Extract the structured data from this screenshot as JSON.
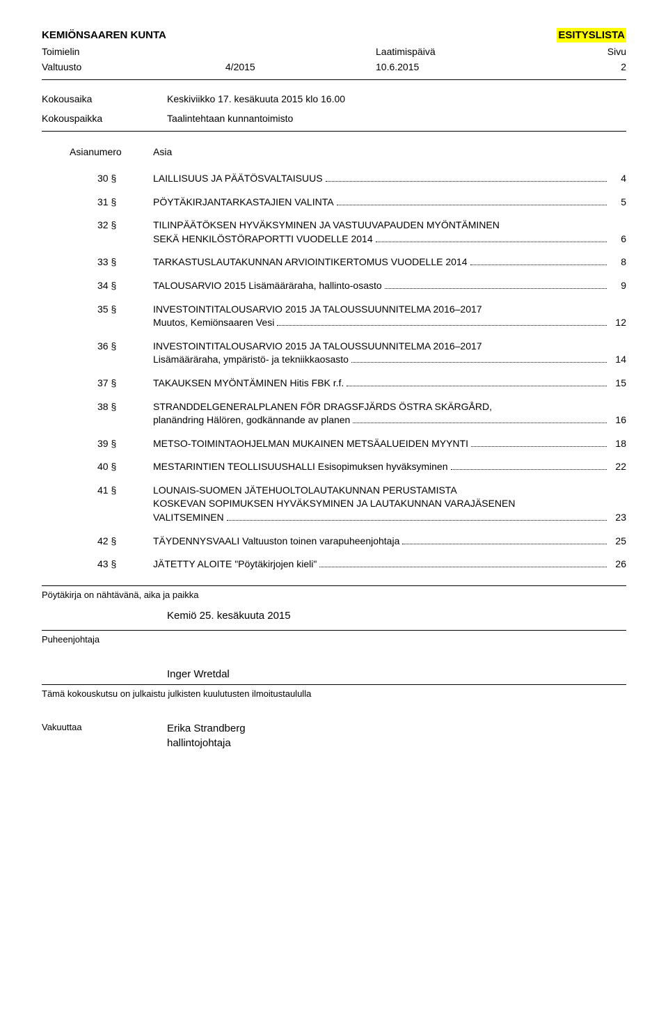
{
  "header": {
    "org": "KEMIÖNSAAREN KUNTA",
    "doc_type": "ESITYSLISTA",
    "body_label": "Toimielin",
    "date_label": "Laatimispäivä",
    "page_label": "Sivu",
    "body_name": "Valtuusto",
    "meeting_no": "4/2015",
    "date": "10.6.2015",
    "page_no": "2"
  },
  "meeting": {
    "time_label": "Kokousaika",
    "time_value": "Keskiviikko 17. kesäkuuta 2015 klo 16.00",
    "place_label": "Kokouspaikka",
    "place_value": "Taalintehtaan kunnantoimisto"
  },
  "agenda_header": {
    "num_label": "Asianumero",
    "title_label": "Asia"
  },
  "agenda": [
    {
      "num": "30 §",
      "title": "LAILLISUUS JA PÄÄTÖSVALTAISUUS",
      "page": "4"
    },
    {
      "num": "31 §",
      "title": "PÖYTÄKIRJANTARKASTAJIEN VALINTA",
      "page": "5"
    },
    {
      "num": "32 §",
      "title": "TILINPÄÄTÖKSEN HYVÄKSYMINEN JA VASTUUVAPAUDEN MYÖNTÄMINEN",
      "subtitle": "SEKÄ HENKILÖSTÖRAPORTTI VUODELLE 2014",
      "page": "6"
    },
    {
      "num": "33 §",
      "title": "TARKASTUSLAUTAKUNNAN ARVIOINTIKERTOMUS VUODELLE 2014",
      "page": "8"
    },
    {
      "num": "34 §",
      "title": "TALOUSARVIO 2015 Lisämääräraha, hallinto-osasto",
      "page": "9"
    },
    {
      "num": "35 §",
      "title": "INVESTOINTITALOUSARVIO 2015 JA TALOUSSUUNNITELMA 2016–2017",
      "subtitle": "Muutos, Kemiönsaaren Vesi",
      "page": "12"
    },
    {
      "num": "36 §",
      "title": "INVESTOINTITALOUSARVIO 2015 JA TALOUSSUUNNITELMA 2016–2017",
      "subtitle": "Lisämääräraha, ympäristö- ja tekniikkaosasto",
      "page": "14"
    },
    {
      "num": "37 §",
      "title": "TAKAUKSEN MYÖNTÄMINEN Hitis FBK r.f.",
      "page": "15"
    },
    {
      "num": "38 §",
      "title": "STRANDDELGENERALPLANEN FÖR DRAGSFJÄRDS ÖSTRA SKÄRGÅRD,",
      "subtitle": "planändring Hälören, godkännande av planen",
      "page": "16"
    },
    {
      "num": "39 §",
      "title": "METSO-TOIMINTAOHJELMAN MUKAINEN METSÄALUEIDEN MYYNTI",
      "page": "18"
    },
    {
      "num": "40 §",
      "title": "MESTARINTIEN TEOLLISUUSHALLI Esisopimuksen hyväksyminen",
      "page": "22"
    },
    {
      "num": "41 §",
      "title": "LOUNAIS-SUOMEN JÄTEHUOLTOLAUTAKUNNAN PERUSTAMISTA",
      "subtitle": "KOSKEVAN SOPIMUKSEN HYVÄKSYMINEN JA LAUTAKUNNAN VARAJÄSENEN",
      "subtitle2": "VALITSEMINEN",
      "page": "23"
    },
    {
      "num": "42 §",
      "title": "TÄYDENNYSVAALI Valtuuston toinen varapuheenjohtaja",
      "page": "25"
    },
    {
      "num": "43 §",
      "title": "JÄTETTY ALOITE \"Pöytäkirjojen kieli\"",
      "page": "26"
    }
  ],
  "footer": {
    "nahtavana_label": "Pöytäkirja on nähtävänä, aika ja paikka",
    "nahtavana_value": "Kemiö 25. kesäkuuta 2015",
    "chair_label": "Puheenjohtaja",
    "chair_name": "Inger Wretdal",
    "publish_note": "Tämä kokouskutsu on julkaistu julkisten kuulutusten ilmoitustaululla",
    "attest_label": "Vakuuttaa",
    "attest_name": "Erika Strandberg",
    "attest_title": "hallintojohtaja"
  },
  "colors": {
    "highlight": "#ffff00",
    "text": "#000000",
    "background": "#ffffff"
  }
}
